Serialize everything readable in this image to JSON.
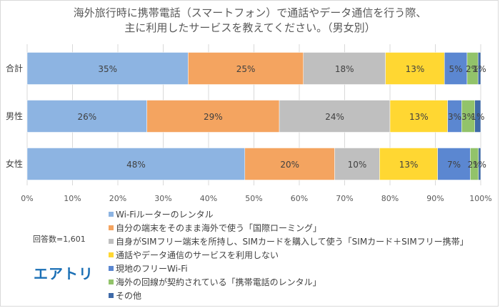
{
  "chart_data": {
    "type": "bar",
    "orientation": "horizontal-stacked-percent",
    "title_line1": "海外旅行時に携帯電話（スマートフォン）で通話やデータ通信を行う際、",
    "title_line2": "主に利用したサービスを教えてください。（男女別）",
    "categories": [
      "合計",
      "男性",
      "女性"
    ],
    "series": [
      {
        "name": "Wi-Fiルーターのレンタル",
        "color": "#8db4e2",
        "values": [
          35.5,
          26.4,
          48.0
        ],
        "labels": [
          "35%",
          "26%",
          "48%"
        ]
      },
      {
        "name": "自分の端末をそのまま海外で使う「国際ローミング」",
        "color": "#f4a460",
        "values": [
          25.4,
          29.2,
          19.8
        ],
        "labels": [
          "25%",
          "29%",
          "20%"
        ]
      },
      {
        "name": "自身がSIMフリー端末を所持し、SIMカードを購入して使う「SIMカード＋SIMフリー携帯」",
        "color": "#bfbfbf",
        "values": [
          18.1,
          24.4,
          9.9
        ],
        "labels": [
          "18%",
          "24%",
          "10%"
        ]
      },
      {
        "name": "通話やデータ通信のサービスを利用しない",
        "color": "#ffd732",
        "values": [
          13.0,
          12.7,
          12.8
        ],
        "labels": [
          "13%",
          "13%",
          "13%"
        ]
      },
      {
        "name": "現地のフリーWi-Fi",
        "color": "#5b87d1",
        "values": [
          5.0,
          3.1,
          7.2
        ],
        "labels": [
          "5%",
          "3%",
          "7%"
        ]
      },
      {
        "name": "海外の回線が契約されている「携帯電話のレンタル」",
        "color": "#92c36a",
        "values": [
          2.4,
          2.9,
          1.8
        ],
        "labels": [
          "2%",
          "3%",
          "2%"
        ]
      },
      {
        "name": "その他",
        "color": "#3f6aa8",
        "values": [
          0.6,
          1.3,
          0.5
        ],
        "labels": [
          "1%",
          "1%",
          "1%"
        ]
      }
    ],
    "x_ticks": [
      "0%",
      "10%",
      "20%",
      "30%",
      "40%",
      "50%",
      "60%",
      "70%",
      "80%",
      "90%",
      "100%"
    ],
    "xlim": [
      0,
      100
    ],
    "grid": true,
    "legend_position": "bottom"
  },
  "sample_size": "回答数=1,601",
  "logo_text": "エアトリ"
}
